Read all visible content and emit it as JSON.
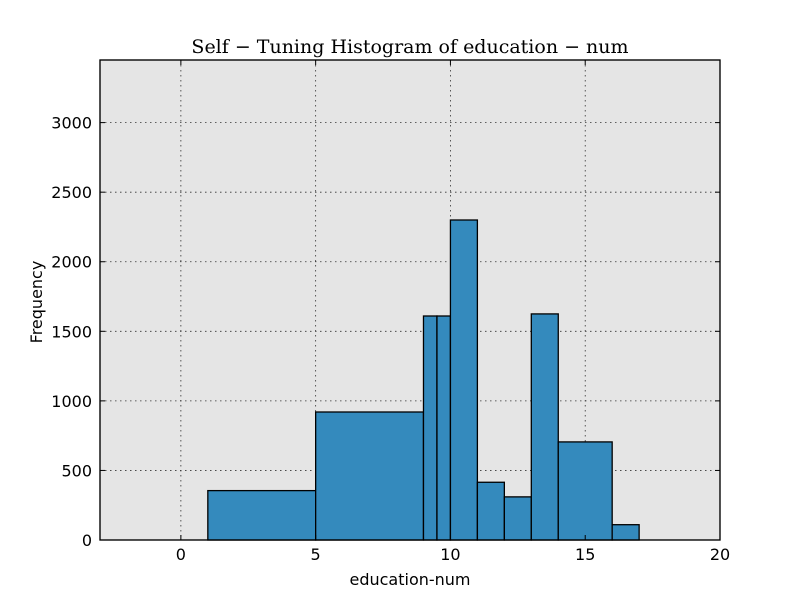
{
  "chart_data": {
    "type": "bar",
    "title": "Self − Tuning Histogram of education − num",
    "xlabel": "education-num",
    "ylabel": "Frequency",
    "xlim": [
      -3,
      20
    ],
    "ylim": [
      0,
      3450
    ],
    "xticks": [
      0,
      5,
      10,
      15,
      20
    ],
    "yticks": [
      0,
      500,
      1000,
      1500,
      2000,
      2500,
      3000
    ],
    "grid": true,
    "bins": [
      {
        "x0": 1,
        "x1": 5,
        "value": 355
      },
      {
        "x0": 5,
        "x1": 9,
        "value": 920
      },
      {
        "x0": 9,
        "x1": 9.5,
        "value": 1610
      },
      {
        "x0": 9.5,
        "x1": 10,
        "value": 1610
      },
      {
        "x0": 10,
        "x1": 11,
        "value": 2300
      },
      {
        "x0": 11,
        "x1": 12,
        "value": 415
      },
      {
        "x0": 12,
        "x1": 13,
        "value": 310
      },
      {
        "x0": 13,
        "x1": 14,
        "value": 1625
      },
      {
        "x0": 14,
        "x1": 16,
        "value": 705
      },
      {
        "x0": 16,
        "x1": 17,
        "value": 110
      }
    ]
  }
}
